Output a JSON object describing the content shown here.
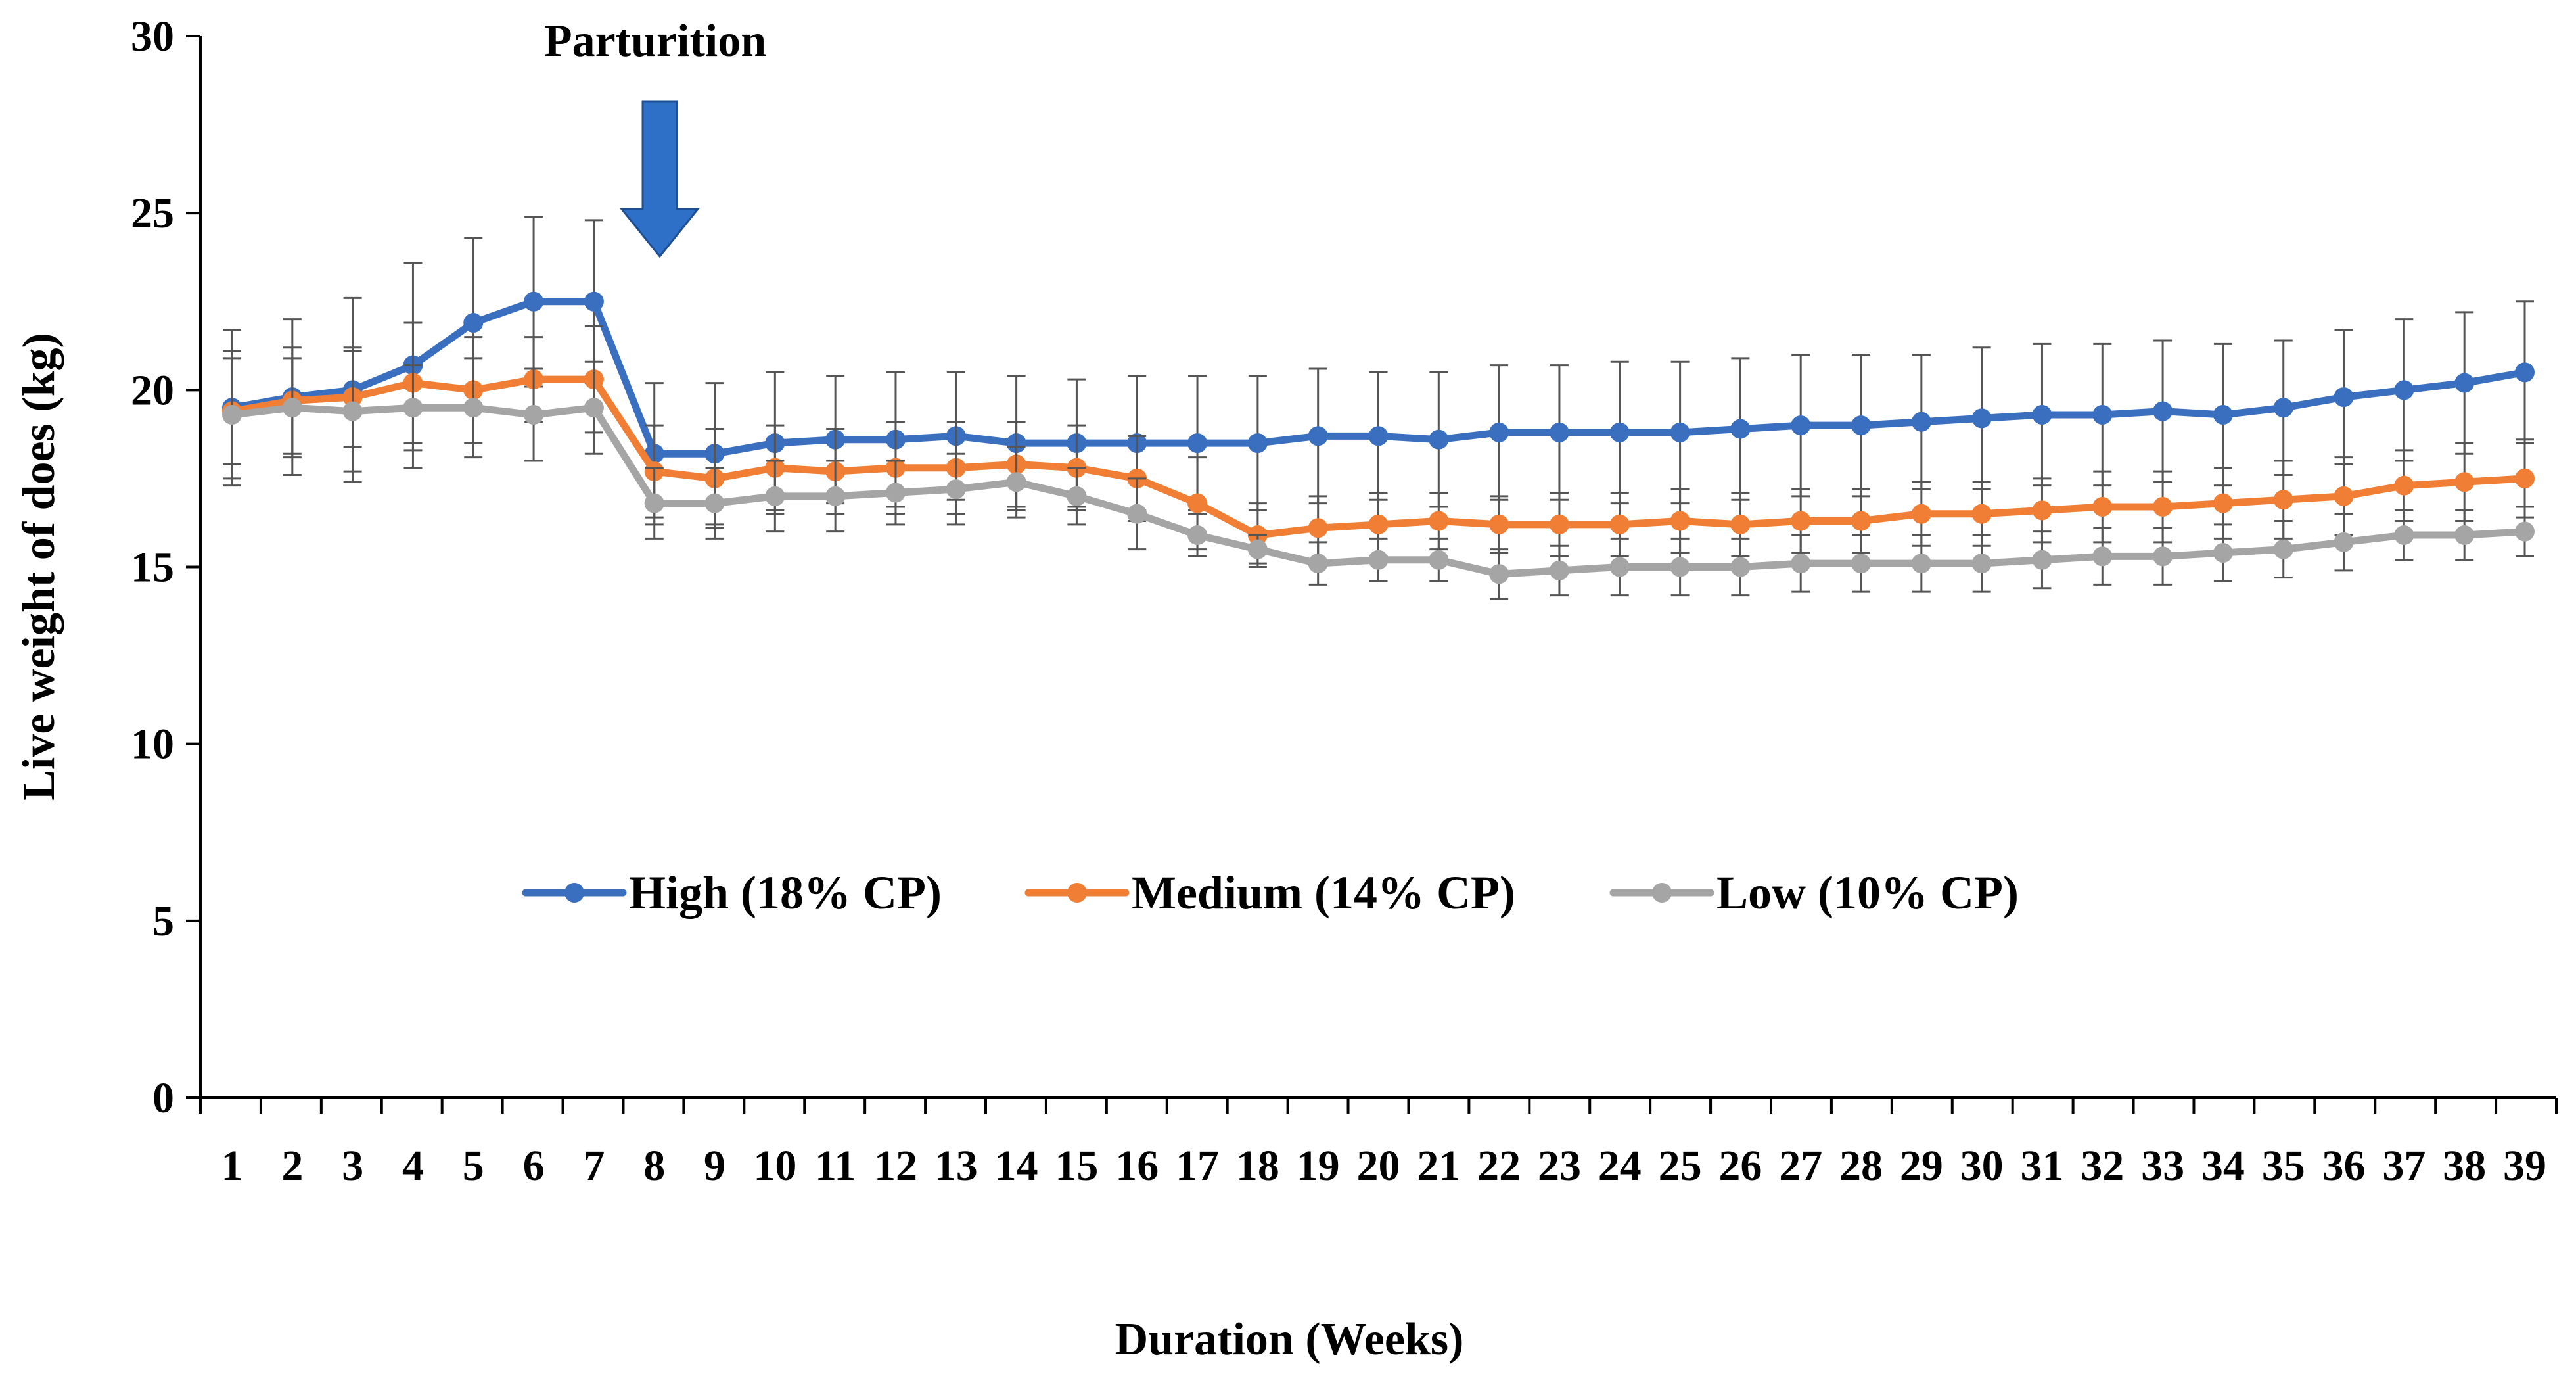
{
  "chart_data": {
    "type": "line",
    "title": "",
    "xlabel": "Duration (Weeks)",
    "ylabel": "Live weight of does (kg)",
    "ylim": [
      0,
      30
    ],
    "yticks": [
      "0",
      "5",
      "10",
      "15",
      "20",
      "25",
      "30"
    ],
    "categories": [
      "1",
      "2",
      "3",
      "4",
      "5",
      "6",
      "7",
      "8",
      "9",
      "10",
      "11",
      "12",
      "13",
      "14",
      "15",
      "16",
      "17",
      "18",
      "19",
      "20",
      "21",
      "22",
      "23",
      "24",
      "25",
      "26",
      "27",
      "28",
      "29",
      "30",
      "31",
      "32",
      "33",
      "34",
      "35",
      "36",
      "37",
      "38",
      "39"
    ],
    "grid": false,
    "legend_position": "center",
    "series": [
      {
        "name": "High (18% CP)",
        "color": "#3a6fc0",
        "values": [
          19.5,
          19.8,
          20.0,
          20.7,
          21.9,
          22.5,
          22.5,
          18.2,
          18.2,
          18.5,
          18.6,
          18.6,
          18.7,
          18.5,
          18.5,
          18.5,
          18.5,
          18.5,
          18.7,
          18.7,
          18.6,
          18.8,
          18.8,
          18.8,
          18.8,
          18.9,
          19.0,
          19.0,
          19.1,
          19.2,
          19.3,
          19.3,
          19.4,
          19.3,
          19.5,
          19.8,
          20.0,
          20.2,
          20.5
        ],
        "error": [
          2.2,
          2.2,
          2.6,
          2.9,
          2.4,
          2.4,
          2.3,
          2.0,
          2.0,
          2.0,
          1.8,
          1.9,
          1.8,
          1.9,
          1.8,
          1.9,
          1.9,
          1.9,
          1.9,
          1.8,
          1.9,
          1.9,
          1.9,
          2.0,
          2.0,
          2.0,
          2.0,
          2.0,
          1.9,
          2.0,
          2.0,
          2.0,
          2.0,
          2.0,
          1.9,
          1.9,
          2.0,
          2.0,
          2.0
        ]
      },
      {
        "name": "Medium (14% CP)",
        "color": "#f07f35",
        "values": [
          19.4,
          19.7,
          19.8,
          20.2,
          20.0,
          20.3,
          20.3,
          17.7,
          17.5,
          17.8,
          17.7,
          17.8,
          17.8,
          17.9,
          17.8,
          17.5,
          16.8,
          15.9,
          16.1,
          16.2,
          16.3,
          16.2,
          16.2,
          16.2,
          16.3,
          16.2,
          16.3,
          16.3,
          16.5,
          16.5,
          16.6,
          16.7,
          16.7,
          16.8,
          16.9,
          17.0,
          17.3,
          17.4,
          17.5
        ],
        "error": [
          1.5,
          1.5,
          1.4,
          1.7,
          1.5,
          1.2,
          1.5,
          1.3,
          1.4,
          1.2,
          1.2,
          1.3,
          1.3,
          1.2,
          1.2,
          1.2,
          1.3,
          0.9,
          0.9,
          0.9,
          0.8,
          0.8,
          0.9,
          0.9,
          0.9,
          0.9,
          0.9,
          0.9,
          0.9,
          0.9,
          0.9,
          1.0,
          1.0,
          1.0,
          1.1,
          1.1,
          1.0,
          1.1,
          1.1
        ]
      },
      {
        "name": "Low (10% CP)",
        "color": "#a5a5a5",
        "values": [
          19.3,
          19.5,
          19.4,
          19.5,
          19.5,
          19.3,
          19.5,
          16.8,
          16.8,
          17.0,
          17.0,
          17.1,
          17.2,
          17.4,
          17.0,
          16.5,
          15.9,
          15.5,
          15.1,
          15.2,
          15.2,
          14.8,
          14.9,
          15.0,
          15.0,
          15.0,
          15.1,
          15.1,
          15.1,
          15.1,
          15.2,
          15.3,
          15.3,
          15.4,
          15.5,
          15.7,
          15.9,
          15.9,
          16.0
        ],
        "error": [
          1.8,
          1.4,
          1.7,
          1.2,
          1.4,
          1.3,
          1.3,
          1.0,
          1.0,
          1.0,
          1.0,
          0.9,
          1.0,
          1.0,
          0.8,
          1.0,
          0.6,
          0.4,
          0.6,
          0.6,
          0.6,
          0.7,
          0.7,
          0.8,
          0.8,
          0.8,
          0.8,
          0.8,
          0.8,
          0.8,
          0.8,
          0.8,
          0.8,
          0.8,
          0.8,
          0.8,
          0.7,
          0.7,
          0.7
        ]
      }
    ],
    "annotations": [
      {
        "text": "Parturition",
        "at_week": "8",
        "marker": "down-arrow"
      }
    ]
  }
}
